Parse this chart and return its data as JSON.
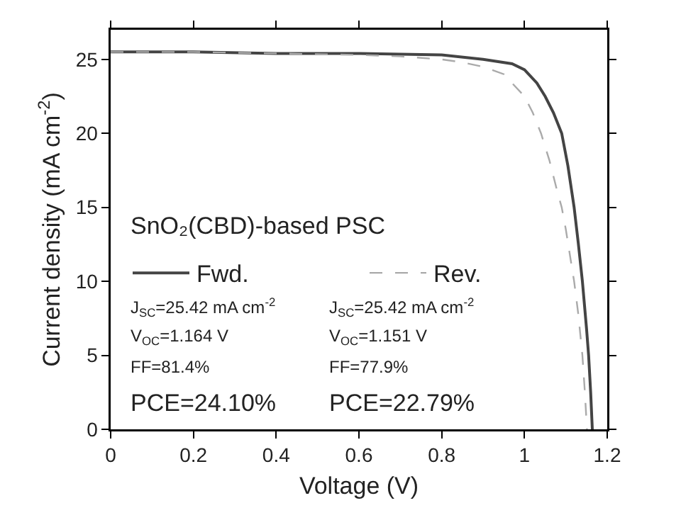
{
  "chart_data": {
    "type": "line",
    "xlabel": "Voltage (V)",
    "ylabel": "Current density (mA cm$^{-2}$)",
    "xlim": [
      0,
      1.2
    ],
    "xticks": [
      0,
      0.2,
      0.4,
      0.6,
      0.8,
      1,
      1.2
    ],
    "ylim": [
      0,
      27
    ],
    "yticks": [
      0,
      5,
      10,
      15,
      20,
      25
    ],
    "grid": false,
    "legend": "left",
    "marker": "none",
    "annotations": [
      "SnO₂(CBD)-based PSC",
      "J$_{SC}$=25.42 mA cm$^{-2}$",
      "J$_{SC}$=25.42 mA cm$^{-2}$",
      "V$_{OC}$=1.164 V",
      "V$_{OC}$=1.151 V",
      "FF=81.4%",
      "FF=77.9%",
      "PCE=24.10%",
      "PCE=22.79%"
    ],
    "series": [
      {
        "name": "Fwd.",
        "color": "#444444",
        "line_style": "solid",
        "x": [
          0,
          0.2,
          0.4,
          0.6,
          0.8,
          0.9,
          0.97,
          1.0,
          1.03,
          1.05,
          1.07,
          1.09,
          1.105,
          1.12,
          1.13,
          1.14,
          1.15,
          1.155,
          1.16,
          1.164
        ],
        "values": [
          25.5,
          25.5,
          25.4,
          25.4,
          25.3,
          25.0,
          24.7,
          24.3,
          23.4,
          22.5,
          21.4,
          20,
          17.8,
          15,
          12.6,
          10,
          6.8,
          5,
          2.5,
          0
        ]
      },
      {
        "name": "Rev.",
        "color": "#aaaaaa",
        "line_style": "dashed",
        "x": [
          0,
          0.2,
          0.4,
          0.6,
          0.7,
          0.8,
          0.85,
          0.9,
          0.95,
          1.0,
          1.02,
          1.04,
          1.06,
          1.08,
          1.09,
          1.1,
          1.12,
          1.13,
          1.14,
          1.146,
          1.151
        ],
        "values": [
          25.5,
          25.5,
          25.4,
          25.3,
          25.2,
          25.0,
          24.8,
          24.5,
          24.0,
          22.5,
          21.4,
          20,
          18.2,
          16,
          15,
          13.5,
          10,
          7.8,
          5,
          2.5,
          0
        ]
      }
    ]
  }
}
